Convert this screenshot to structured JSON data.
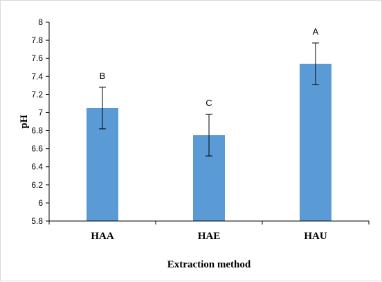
{
  "chart_data": {
    "type": "bar",
    "categories": [
      "HAA",
      "HAE",
      "HAU"
    ],
    "values": [
      7.05,
      6.75,
      7.54
    ],
    "error": [
      0.23,
      0.23,
      0.23
    ],
    "significance_letters": [
      "B",
      "C",
      "A"
    ],
    "xlabel": "Extraction method",
    "ylabel": "pH",
    "ylim": [
      5.8,
      8
    ],
    "yticks": [
      "5.8",
      "6",
      "6.2",
      "6.4",
      "6.6",
      "6.8",
      "7",
      "7.2",
      "7.4",
      "7.6",
      "7.8",
      "8"
    ],
    "grid": false,
    "bar_color": "#5b9bd5"
  }
}
